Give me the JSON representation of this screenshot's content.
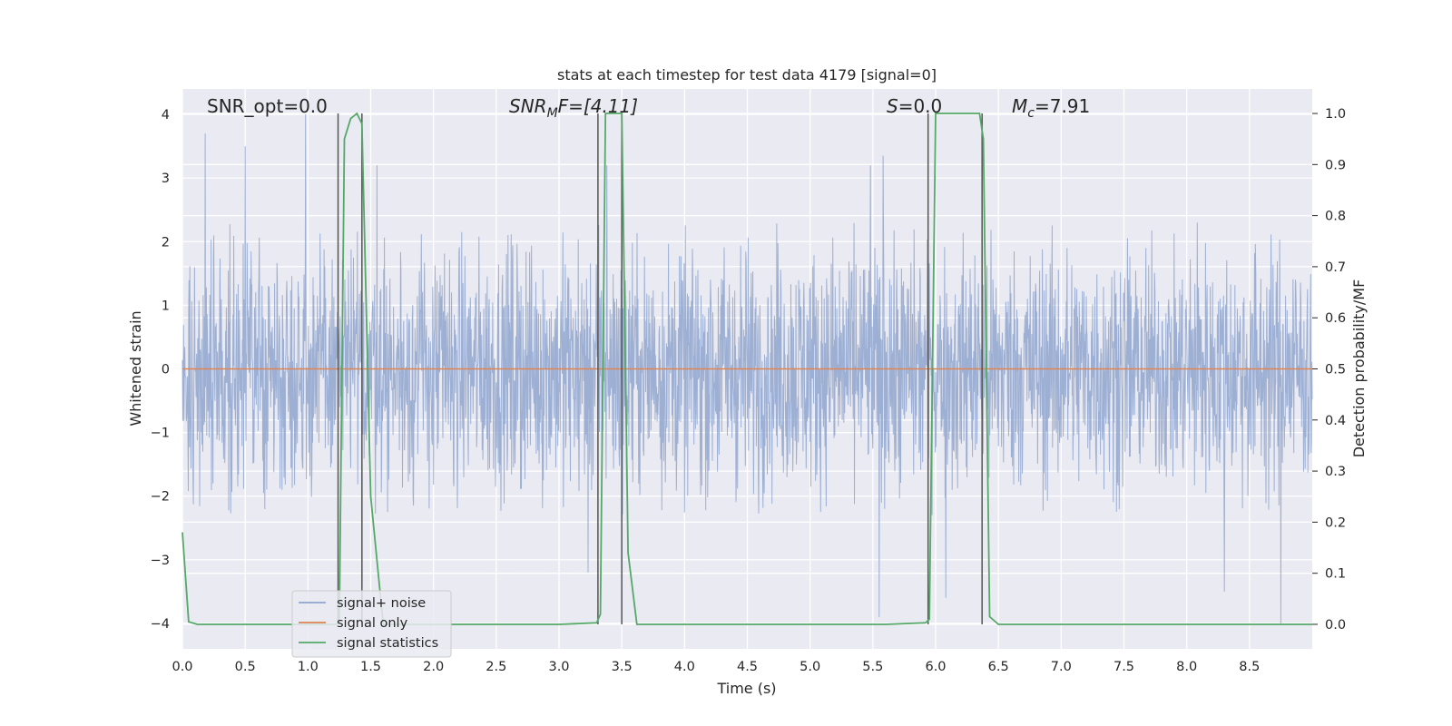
{
  "chart_data": {
    "type": "line",
    "title": "stats at each timestep for test data 4179 [signal=0]",
    "xlabel": "Time (s)",
    "ylabel": "Whitened strain",
    "y2label": "Detection probability/MF",
    "xlim": [
      0.0,
      9.0
    ],
    "ylim": [
      -4.4,
      4.4
    ],
    "y2lim": [
      -0.048,
      1.048
    ],
    "xticks": [
      "0.0",
      "0.5",
      "1.0",
      "1.5",
      "2.0",
      "2.5",
      "3.0",
      "3.5",
      "4.0",
      "4.5",
      "5.0",
      "5.5",
      "6.0",
      "6.5",
      "7.0",
      "7.5",
      "8.0",
      "8.5"
    ],
    "xtick_values": [
      0.0,
      0.5,
      1.0,
      1.5,
      2.0,
      2.5,
      3.0,
      3.5,
      4.0,
      4.5,
      5.0,
      5.5,
      6.0,
      6.5,
      7.0,
      7.5,
      8.0,
      8.5
    ],
    "yticks": [
      "−4",
      "−3",
      "−2",
      "−1",
      "0",
      "1",
      "2",
      "3",
      "4"
    ],
    "ytick_values": [
      -4,
      -3,
      -2,
      -1,
      0,
      1,
      2,
      3,
      4
    ],
    "y2ticks": [
      "0.0",
      "0.1",
      "0.2",
      "0.3",
      "0.4",
      "0.5",
      "0.6",
      "0.7",
      "0.8",
      "0.9",
      "1.0"
    ],
    "y2tick_values": [
      0.0,
      0.1,
      0.2,
      0.3,
      0.4,
      0.5,
      0.6,
      0.7,
      0.8,
      0.9,
      1.0
    ],
    "grid": true,
    "legend_position": "lower-left",
    "annotations": {
      "snr_opt": "SNR_opt=0.0",
      "snr_mf_main": "SNR",
      "snr_mf_sub": "M",
      "snr_mf_tail": "F=[4.11]",
      "s_main": "S",
      "s_tail": "=0.0",
      "mc_main": "M",
      "mc_sub": "c",
      "mc_tail": "=7.91"
    },
    "series": [
      {
        "name": "signal+ noise",
        "color": "#8fa6cf",
        "kind": "noise",
        "sample_rate": 320,
        "typical_abs_max": 2.3,
        "peaks": [
          {
            "t": 0.18,
            "y": 3.7
          },
          {
            "t": 0.5,
            "y": 3.5
          },
          {
            "t": 0.98,
            "y": 4.0
          },
          {
            "t": 1.55,
            "y": 3.2
          },
          {
            "t": 3.38,
            "y": 3.2
          },
          {
            "t": 5.48,
            "y": 3.2
          },
          {
            "t": 5.58,
            "y": 3.35
          },
          {
            "t": 3.23,
            "y": -3.2
          },
          {
            "t": 5.55,
            "y": -3.9
          },
          {
            "t": 8.3,
            "y": -3.5
          },
          {
            "t": 8.75,
            "y": -4.0
          },
          {
            "t": 6.08,
            "y": -3.6
          }
        ]
      },
      {
        "name": "signal only",
        "color": "#dd8452",
        "kind": "line",
        "x": [
          0.0,
          9.0
        ],
        "y": [
          0.0,
          0.0
        ]
      },
      {
        "name": "signal statistics",
        "color": "#55a868",
        "kind": "line",
        "axis": "right",
        "x": [
          0.0,
          0.05,
          0.12,
          1.1,
          1.22,
          1.25,
          1.29,
          1.34,
          1.39,
          1.43,
          1.5,
          1.6,
          1.7,
          3.0,
          3.3,
          3.33,
          3.37,
          3.5,
          3.55,
          3.62,
          5.6,
          5.92,
          5.95,
          6.0,
          6.35,
          6.38,
          6.43,
          6.5,
          9.0
        ],
        "y": [
          0.18,
          0.005,
          0.0,
          0.0,
          0.0,
          0.002,
          0.95,
          0.99,
          1.0,
          0.98,
          0.25,
          0.0,
          0.0,
          0.0,
          0.003,
          0.02,
          1.0,
          1.0,
          0.14,
          0.0,
          0.0,
          0.003,
          0.01,
          1.0,
          1.0,
          0.95,
          0.015,
          0.0,
          0.0
        ]
      }
    ],
    "vertical_markers": [
      1.24,
      1.43,
      3.31,
      3.5,
      5.94,
      6.37
    ],
    "marker_color": "#555555"
  }
}
